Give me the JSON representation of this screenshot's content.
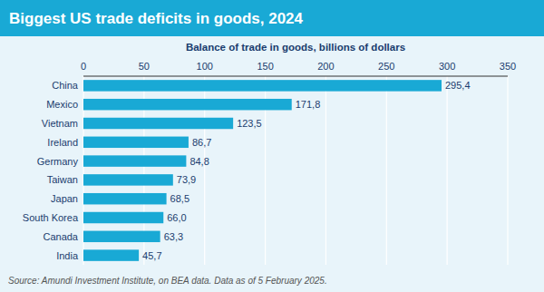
{
  "chart_data": {
    "type": "bar",
    "orientation": "horizontal",
    "title": "Biggest US trade deficits in goods, 2024",
    "xlabel": "Balance of trade in goods, billions of dollars",
    "source": "Source: Amundi Investment Institute,  on BEA data.  Data as of 5 February 2025.",
    "categories": [
      "India",
      "Canada",
      "South Korea",
      "Japan",
      "Taiwan",
      "Germany",
      "Ireland",
      "Vietnam",
      "Mexico",
      "China"
    ],
    "values": [
      45.7,
      63.3,
      66.0,
      68.5,
      73.9,
      84.8,
      86.7,
      123.5,
      171.8,
      295.4
    ],
    "value_labels": [
      "45,7",
      "63,3",
      "66,0",
      "68,5",
      "73,9",
      "84,8",
      "86,7",
      "123,5",
      "171,8",
      "295,4"
    ],
    "data_labels": true,
    "color": "#19A9D5",
    "xlim": [
      0,
      350
    ],
    "xticks": [
      0,
      50,
      100,
      150,
      200,
      250,
      300,
      350
    ],
    "grid": true
  }
}
